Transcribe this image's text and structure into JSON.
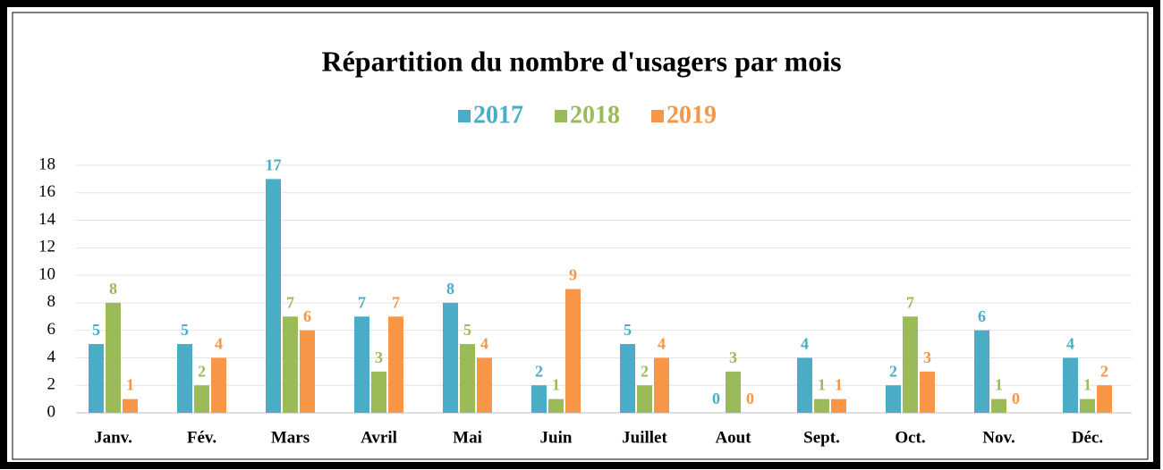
{
  "chart_data": {
    "type": "bar",
    "title": "Répartition du nombre d'usagers par mois",
    "categories": [
      "Janv.",
      "Fév.",
      "Mars",
      "Avril",
      "Mai",
      "Juin",
      "Juillet",
      "Aout",
      "Sept.",
      "Oct.",
      "Nov.",
      "Déc."
    ],
    "series": [
      {
        "name": "2017",
        "color": "#4bacc6",
        "values": [
          5,
          5,
          17,
          7,
          8,
          2,
          5,
          0,
          4,
          2,
          6,
          4
        ]
      },
      {
        "name": "2018",
        "color": "#9bbb59",
        "values": [
          8,
          2,
          7,
          3,
          5,
          1,
          2,
          3,
          1,
          7,
          1,
          1
        ]
      },
      {
        "name": "2019",
        "color": "#f79646",
        "values": [
          1,
          4,
          6,
          7,
          4,
          9,
          4,
          0,
          1,
          3,
          0,
          2
        ]
      }
    ],
    "ylim": [
      0,
      18
    ],
    "yticks": [
      0,
      2,
      4,
      6,
      8,
      10,
      12,
      14,
      16,
      18
    ],
    "grid": true,
    "legend": "top"
  }
}
